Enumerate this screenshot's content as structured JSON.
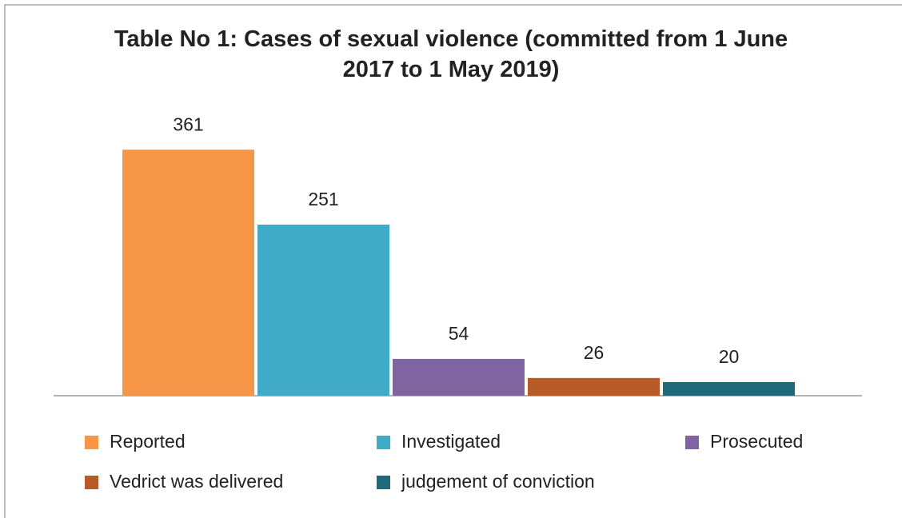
{
  "chart_data": {
    "type": "bar",
    "title": "Table No 1: Cases of sexual violence (committed from 1 June 2017 to 1 May 2019)",
    "series": [
      {
        "name": "Reported",
        "color": "#f79646",
        "values": [
          361
        ]
      },
      {
        "name": "Investigated",
        "color": "#3fabc7",
        "values": [
          251
        ]
      },
      {
        "name": "Prosecuted",
        "color": "#8064a2",
        "values": [
          54
        ]
      },
      {
        "name": "Vedrict was delivered",
        "color": "#b85a28",
        "values": [
          26
        ]
      },
      {
        "name": "judgement of conviction",
        "color": "#216a7b",
        "values": [
          20
        ]
      }
    ],
    "ylim": [
      0,
      400
    ]
  }
}
